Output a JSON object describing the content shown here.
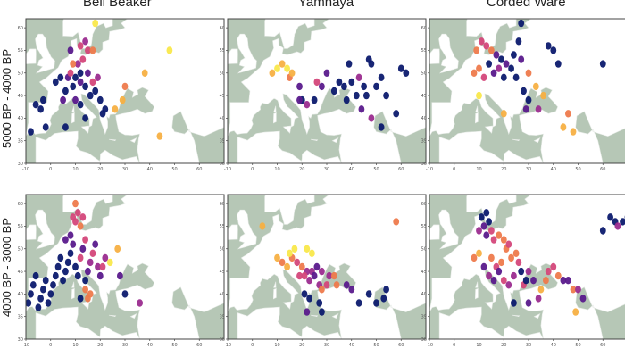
{
  "columns": [
    "Bell Beaker",
    "Yamnaya",
    "Corded Ware"
  ],
  "rows": [
    "5000 BP - 4000 BP",
    "4000 BP - 3000 BP"
  ],
  "x_ticks": [
    "-10",
    "0",
    "10",
    "20",
    "30",
    "40",
    "50",
    "60"
  ],
  "y_ticks": [
    "30",
    "35",
    "40",
    "45",
    "50",
    "55",
    "60"
  ],
  "colors": {
    "sea": "#b6c7b6",
    "land": "#ffffff",
    "frame": "#444444",
    "palette": [
      "#0c1a6e",
      "#5a1a8c",
      "#9b2c8f",
      "#d4477a",
      "#ee7a4c",
      "#f7b043",
      "#f9e84b"
    ]
  },
  "panels": [
    {
      "column": "Bell Beaker",
      "period": "5000 BP - 4000 BP",
      "points": [
        [
          -8,
          37,
          0
        ],
        [
          -6,
          43,
          0
        ],
        [
          -4,
          42,
          0
        ],
        [
          -2,
          38,
          0
        ],
        [
          -3,
          44,
          0
        ],
        [
          2,
          48,
          0
        ],
        [
          4,
          49,
          0
        ],
        [
          5,
          44,
          1
        ],
        [
          6,
          46,
          0
        ],
        [
          7,
          49,
          1
        ],
        [
          8,
          50,
          3
        ],
        [
          9,
          47,
          0
        ],
        [
          10,
          49,
          0
        ],
        [
          11,
          52,
          2
        ],
        [
          12,
          48,
          1
        ],
        [
          12,
          50,
          0
        ],
        [
          13,
          53,
          3
        ],
        [
          14,
          47,
          0
        ],
        [
          15,
          50,
          1
        ],
        [
          16,
          45,
          0
        ],
        [
          17,
          48,
          3
        ],
        [
          18,
          46,
          0
        ],
        [
          19,
          49,
          2
        ],
        [
          20,
          44,
          0
        ],
        [
          21,
          41,
          0
        ],
        [
          22,
          42,
          0
        ],
        [
          12,
          43,
          0
        ],
        [
          10,
          44,
          1
        ],
        [
          9,
          52,
          4
        ],
        [
          12,
          56,
          3
        ],
        [
          14,
          57,
          2
        ],
        [
          15,
          55,
          3
        ],
        [
          8,
          55,
          1
        ],
        [
          17,
          55,
          4
        ],
        [
          6,
          38,
          0
        ],
        [
          14,
          40,
          0
        ],
        [
          26,
          42,
          5
        ],
        [
          18,
          61,
          6
        ],
        [
          29,
          44,
          5
        ],
        [
          30,
          47,
          4
        ],
        [
          38,
          50,
          5
        ],
        [
          48,
          55,
          6
        ],
        [
          44,
          36,
          5
        ]
      ]
    },
    {
      "column": "Yamnaya",
      "period": "5000 BP - 4000 BP",
      "points": [
        [
          8,
          50,
          5
        ],
        [
          10,
          51,
          6
        ],
        [
          12,
          52,
          5
        ],
        [
          14,
          51,
          6
        ],
        [
          15,
          49,
          4
        ],
        [
          16,
          50,
          5
        ],
        [
          19,
          47,
          1
        ],
        [
          20,
          44,
          0
        ],
        [
          19,
          44,
          1
        ],
        [
          22,
          43,
          2
        ],
        [
          25,
          44,
          0
        ],
        [
          26,
          48,
          3
        ],
        [
          28,
          47,
          1
        ],
        [
          30,
          50,
          1
        ],
        [
          33,
          46,
          0
        ],
        [
          35,
          48,
          0
        ],
        [
          37,
          47,
          0
        ],
        [
          38,
          44,
          0
        ],
        [
          39,
          52,
          0
        ],
        [
          40,
          48,
          0
        ],
        [
          42,
          45,
          0
        ],
        [
          43,
          49,
          2
        ],
        [
          45,
          47,
          0
        ],
        [
          46,
          45,
          0
        ],
        [
          47,
          53,
          0
        ],
        [
          48,
          52,
          0
        ],
        [
          50,
          47,
          0
        ],
        [
          52,
          49,
          0
        ],
        [
          54,
          45,
          0
        ],
        [
          60,
          51,
          0
        ],
        [
          62,
          50,
          0
        ],
        [
          44,
          42,
          1
        ],
        [
          48,
          40,
          2
        ],
        [
          52,
          38,
          0
        ],
        [
          58,
          41,
          0
        ]
      ]
    },
    {
      "column": "Corded Ware",
      "period": "5000 BP - 4000 BP",
      "points": [
        [
          9,
          55,
          4
        ],
        [
          11,
          57,
          3
        ],
        [
          13,
          56,
          3
        ],
        [
          15,
          55,
          4
        ],
        [
          17,
          54,
          1
        ],
        [
          19,
          53,
          0
        ],
        [
          14,
          52,
          0
        ],
        [
          16,
          50,
          1
        ],
        [
          18,
          51,
          2
        ],
        [
          20,
          49,
          0
        ],
        [
          21,
          52,
          1
        ],
        [
          23,
          51,
          0
        ],
        [
          24,
          54,
          0
        ],
        [
          26,
          57,
          0
        ],
        [
          27,
          53,
          1
        ],
        [
          12,
          49,
          3
        ],
        [
          10,
          51,
          4
        ],
        [
          8,
          50,
          4
        ],
        [
          25,
          49,
          0
        ],
        [
          30,
          50,
          4
        ],
        [
          33,
          47,
          5
        ],
        [
          36,
          45,
          5
        ],
        [
          38,
          56,
          0
        ],
        [
          40,
          55,
          0
        ],
        [
          42,
          52,
          0
        ],
        [
          28,
          46,
          0
        ],
        [
          30,
          44,
          0
        ],
        [
          29,
          42,
          1
        ],
        [
          34,
          42,
          2
        ],
        [
          44,
          38,
          5
        ],
        [
          46,
          41,
          4
        ],
        [
          48,
          37,
          5
        ],
        [
          60,
          52,
          0
        ],
        [
          27,
          61,
          0
        ],
        [
          10,
          45,
          6
        ],
        [
          20,
          41,
          5
        ]
      ]
    },
    {
      "column": "Bell Beaker",
      "period": "4000 BP - 3000 BP",
      "points": [
        [
          -9,
          38,
          0
        ],
        [
          -8,
          40,
          0
        ],
        [
          -7,
          42,
          0
        ],
        [
          -6,
          44,
          0
        ],
        [
          -5,
          37,
          0
        ],
        [
          -4,
          39,
          0
        ],
        [
          -3,
          41,
          0
        ],
        [
          -2,
          43,
          0
        ],
        [
          -1,
          38,
          0
        ],
        [
          0,
          40,
          0
        ],
        [
          1,
          42,
          0
        ],
        [
          2,
          44,
          0
        ],
        [
          3,
          46,
          0
        ],
        [
          4,
          48,
          0
        ],
        [
          5,
          43,
          0
        ],
        [
          6,
          45,
          0
        ],
        [
          7,
          47,
          0
        ],
        [
          8,
          49,
          0
        ],
        [
          9,
          51,
          1
        ],
        [
          10,
          46,
          0
        ],
        [
          11,
          44,
          0
        ],
        [
          12,
          48,
          3
        ],
        [
          13,
          50,
          1
        ],
        [
          14,
          52,
          3
        ],
        [
          15,
          45,
          1
        ],
        [
          16,
          47,
          2
        ],
        [
          17,
          49,
          3
        ],
        [
          18,
          51,
          1
        ],
        [
          19,
          46,
          2
        ],
        [
          20,
          44,
          1
        ],
        [
          21,
          46,
          3
        ],
        [
          22,
          48,
          2
        ],
        [
          14,
          41,
          4
        ],
        [
          15,
          39,
          4
        ],
        [
          16,
          40,
          4
        ],
        [
          10,
          56,
          3
        ],
        [
          11,
          58,
          3
        ],
        [
          12,
          55,
          4
        ],
        [
          13,
          57,
          3
        ],
        [
          9,
          57,
          3
        ],
        [
          10,
          60,
          4
        ],
        [
          8,
          53,
          1
        ],
        [
          6,
          52,
          1
        ],
        [
          14,
          43,
          0
        ],
        [
          12,
          39,
          0
        ],
        [
          24,
          47,
          6
        ],
        [
          27,
          50,
          5
        ],
        [
          28,
          44,
          1
        ],
        [
          30,
          40,
          0
        ],
        [
          36,
          38,
          2
        ]
      ]
    },
    {
      "column": "Yamnaya",
      "period": "4000 BP - 3000 BP",
      "points": [
        [
          4,
          55,
          5
        ],
        [
          10,
          48,
          5
        ],
        [
          12,
          47,
          4
        ],
        [
          14,
          46,
          5
        ],
        [
          16,
          48,
          4
        ],
        [
          18,
          47,
          3
        ],
        [
          20,
          46,
          4
        ],
        [
          22,
          45,
          2
        ],
        [
          19,
          44,
          3
        ],
        [
          21,
          44,
          3
        ],
        [
          23,
          43,
          2
        ],
        [
          24,
          45,
          2
        ],
        [
          25,
          44,
          1
        ],
        [
          26,
          46,
          1
        ],
        [
          27,
          42,
          2
        ],
        [
          28,
          45,
          2
        ],
        [
          30,
          42,
          3
        ],
        [
          31,
          44,
          2
        ],
        [
          33,
          44,
          4
        ],
        [
          34,
          42,
          4
        ],
        [
          15,
          49,
          6
        ],
        [
          17,
          50,
          6
        ],
        [
          22,
          50,
          6
        ],
        [
          24,
          49,
          6
        ],
        [
          21,
          40,
          0
        ],
        [
          23,
          39,
          0
        ],
        [
          22,
          36,
          1
        ],
        [
          27,
          38,
          0
        ],
        [
          28,
          36,
          0
        ],
        [
          38,
          42,
          1
        ],
        [
          40,
          41,
          1
        ],
        [
          43,
          38,
          0
        ],
        [
          47,
          40,
          0
        ],
        [
          50,
          38,
          0
        ],
        [
          54,
          41,
          0
        ],
        [
          53,
          39,
          0
        ],
        [
          58,
          56,
          4
        ],
        [
          28,
          41,
          4
        ]
      ]
    },
    {
      "column": "Corded Ware",
      "period": "4000 BP - 3000 BP",
      "points": [
        [
          11,
          57,
          0
        ],
        [
          13,
          58,
          0
        ],
        [
          14,
          56,
          0
        ],
        [
          12,
          55,
          1
        ],
        [
          10,
          54,
          2
        ],
        [
          13,
          53,
          1
        ],
        [
          15,
          54,
          3
        ],
        [
          16,
          52,
          3
        ],
        [
          18,
          53,
          4
        ],
        [
          20,
          52,
          4
        ],
        [
          21,
          50,
          4
        ],
        [
          22,
          51,
          3
        ],
        [
          23,
          48,
          4
        ],
        [
          25,
          49,
          4
        ],
        [
          26,
          47,
          3
        ],
        [
          19,
          47,
          4
        ],
        [
          17,
          46,
          3
        ],
        [
          15,
          48,
          4
        ],
        [
          10,
          49,
          5
        ],
        [
          8,
          48,
          4
        ],
        [
          12,
          46,
          1
        ],
        [
          14,
          44,
          2
        ],
        [
          16,
          43,
          1
        ],
        [
          18,
          45,
          1
        ],
        [
          20,
          43,
          3
        ],
        [
          22,
          42,
          2
        ],
        [
          24,
          44,
          2
        ],
        [
          27,
          45,
          0
        ],
        [
          28,
          42,
          3
        ],
        [
          29,
          43,
          0
        ],
        [
          30,
          45,
          2
        ],
        [
          32,
          43,
          1
        ],
        [
          35,
          41,
          5
        ],
        [
          37,
          43,
          4
        ],
        [
          38,
          45,
          3
        ],
        [
          40,
          46,
          3
        ],
        [
          42,
          44,
          4
        ],
        [
          44,
          43,
          1
        ],
        [
          46,
          43,
          1
        ],
        [
          48,
          41,
          4
        ],
        [
          50,
          41,
          2
        ],
        [
          52,
          39,
          1
        ],
        [
          49,
          36,
          5
        ],
        [
          60,
          54,
          0
        ],
        [
          63,
          57,
          0
        ],
        [
          65,
          56,
          0
        ],
        [
          66,
          55,
          2
        ],
        [
          68,
          56,
          0
        ],
        [
          70,
          57,
          0
        ],
        [
          24,
          38,
          0
        ],
        [
          30,
          38,
          1
        ],
        [
          34,
          39,
          2
        ]
      ]
    }
  ]
}
